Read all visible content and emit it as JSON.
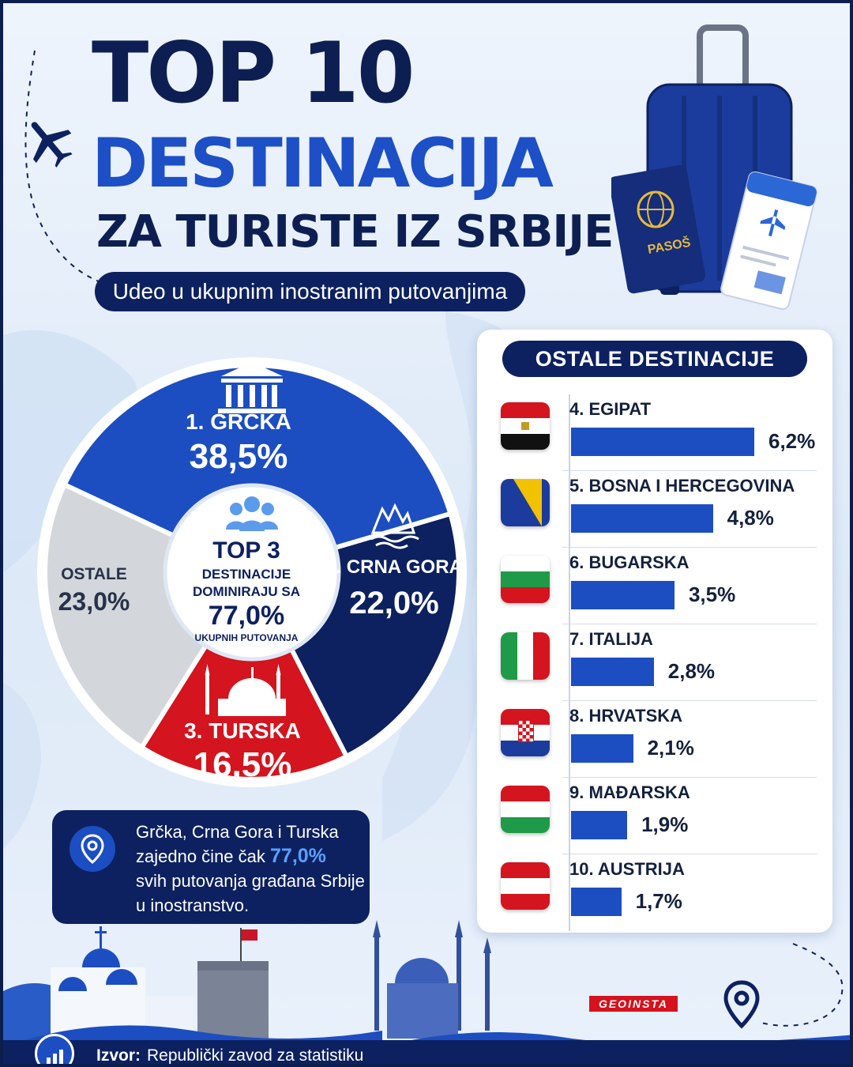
{
  "title": {
    "line1": "TOP 10",
    "line2": "DESTINACIJA",
    "line3": "ZA TURISTE IZ SRBIJE",
    "subtitle": "Udeo u ukupnim inostranim putovanjima"
  },
  "luggage": {
    "passport_label": "PASOŠ"
  },
  "pie_center": {
    "top": "TOP 3",
    "line2": "DESTINACIJE",
    "line3": "DOMINIRAJU SA",
    "value": "77,0%",
    "line5": "UKUPNIH PUTOVANJA"
  },
  "chart_data": [
    {
      "type": "pie",
      "categories": [
        "1. GRČKA",
        "2. CRNA GORA",
        "3. TURSKA",
        "OSTALE"
      ],
      "values": [
        38.5,
        22.0,
        16.5,
        23.0
      ],
      "value_labels": [
        "38,5%",
        "22,0%",
        "16,5%",
        "23,0%"
      ],
      "colors": [
        "#1c4ec2",
        "#0d2160",
        "#d4141e",
        "#d3d6da"
      ]
    },
    {
      "type": "bar",
      "title": "OSTALE DESTINACIJE",
      "categories": [
        "4. EGIPAT",
        "5. BOSNA I HERCEGOVINA",
        "6. BUGARSKA",
        "7. ITALIJA",
        "8. HRVATSKA",
        "9. MAĐARSKA",
        "10. AUSTRIJA"
      ],
      "values": [
        6.2,
        4.8,
        3.5,
        2.8,
        2.1,
        1.9,
        1.7
      ],
      "value_labels": [
        "6,2%",
        "4,8%",
        "3,5%",
        "2,8%",
        "2,1%",
        "1,9%",
        "1,7%"
      ],
      "flags": [
        "egypt",
        "bosnia",
        "bulgaria",
        "italy",
        "croatia",
        "hungary",
        "austria"
      ],
      "bar_color": "#1c4ec2"
    }
  ],
  "note": {
    "line1": "Grčka, Crna Gora i Turska",
    "line2_pre": "zajedno čine čak",
    "line2_value": "77,0%",
    "line3": "svih putovanja građana Srbije",
    "line4": "u inostranstvo."
  },
  "brand": "GEOINSTA",
  "footer": {
    "label": "Izvor:",
    "source": "Republički zavod za statistiku"
  },
  "icons": [
    "plane-icon",
    "suitcase-icon",
    "passport-icon",
    "boarding-pass-icon",
    "temple-icon",
    "people-icon",
    "mountain-icon",
    "mosque-icon",
    "location-pin-icon",
    "bar-chart-icon"
  ]
}
